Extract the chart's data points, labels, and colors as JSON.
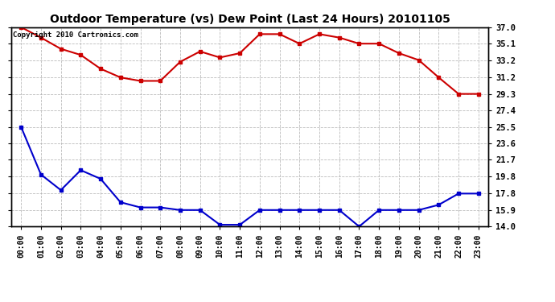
{
  "title": "Outdoor Temperature (vs) Dew Point (Last 24 Hours) 20101105",
  "copyright": "Copyright 2010 Cartronics.com",
  "x_labels": [
    "00:00",
    "01:00",
    "02:00",
    "03:00",
    "04:00",
    "05:00",
    "06:00",
    "07:00",
    "08:00",
    "09:00",
    "10:00",
    "11:00",
    "12:00",
    "13:00",
    "14:00",
    "15:00",
    "16:00",
    "17:00",
    "18:00",
    "19:00",
    "20:00",
    "21:00",
    "22:00",
    "23:00"
  ],
  "temp_data": [
    37.0,
    35.8,
    34.5,
    33.8,
    32.2,
    31.2,
    30.8,
    30.8,
    33.0,
    34.2,
    33.5,
    34.0,
    36.2,
    36.2,
    35.1,
    36.2,
    35.8,
    35.1,
    35.1,
    34.0,
    33.2,
    31.2,
    29.3,
    29.3
  ],
  "dew_data": [
    25.5,
    20.0,
    18.2,
    20.5,
    19.5,
    16.8,
    16.2,
    16.2,
    15.9,
    15.9,
    14.2,
    14.2,
    15.9,
    15.9,
    15.9,
    15.9,
    15.9,
    14.0,
    15.9,
    15.9,
    15.9,
    16.5,
    17.8,
    17.8
  ],
  "temp_color": "#cc0000",
  "dew_color": "#0000cc",
  "bg_color": "#ffffff",
  "plot_bg_color": "#ffffff",
  "grid_color": "#aaaaaa",
  "ylim_min": 14.0,
  "ylim_max": 37.0,
  "yticks": [
    14.0,
    15.9,
    17.8,
    19.8,
    21.7,
    23.6,
    25.5,
    27.4,
    29.3,
    31.2,
    33.2,
    35.1,
    37.0
  ],
  "marker": "s",
  "marker_size": 3,
  "line_width": 1.5,
  "title_fontsize": 10,
  "tick_fontsize": 7,
  "ytick_fontsize": 7.5,
  "copyright_fontsize": 6.5
}
